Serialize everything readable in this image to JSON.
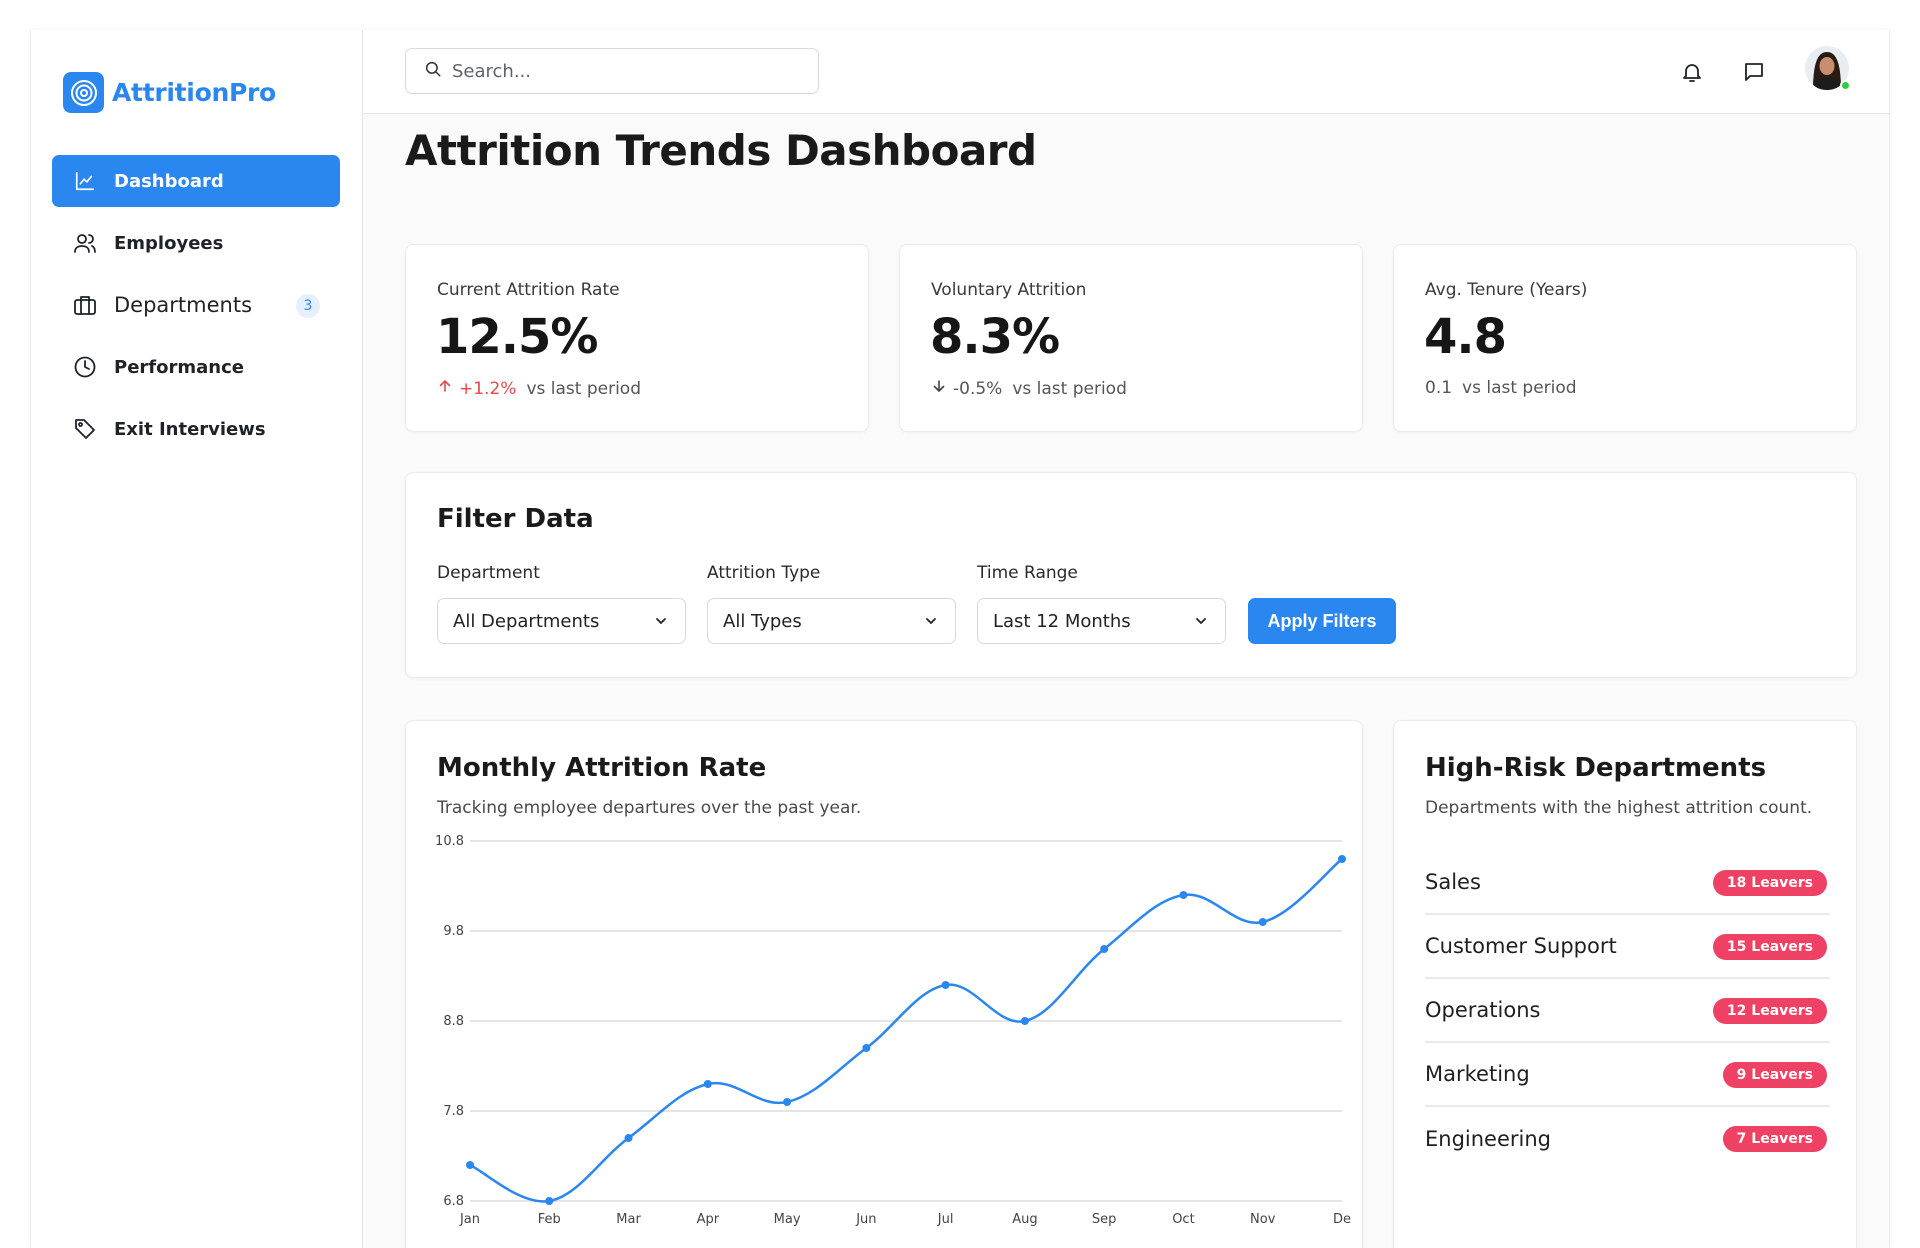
{
  "brand": {
    "name": "AttritionPro"
  },
  "sidebar": {
    "items": [
      {
        "label": "Dashboard",
        "icon": "line-chart-icon",
        "active": true
      },
      {
        "label": "Employees",
        "icon": "users-icon"
      },
      {
        "label": "Departments",
        "icon": "briefcase-icon",
        "badge": "3"
      },
      {
        "label": "Performance",
        "icon": "clock-icon"
      },
      {
        "label": "Exit Interviews",
        "icon": "tag-icon"
      }
    ]
  },
  "header": {
    "search_placeholder": "Search...",
    "icons": [
      "bell-icon",
      "message-icon"
    ]
  },
  "page": {
    "title": "Attrition Trends Dashboard"
  },
  "stats": [
    {
      "label": "Current Attrition Rate",
      "value": "12.5%",
      "change": "+1.2%",
      "direction": "up",
      "suffix": "vs last period"
    },
    {
      "label": "Voluntary Attrition",
      "value": "8.3%",
      "change": "-0.5%",
      "direction": "down",
      "suffix": "vs last period"
    },
    {
      "label": "Avg. Tenure (Years)",
      "value": "4.8",
      "change": "0.1",
      "direction": "none",
      "suffix": "vs last period"
    }
  ],
  "filters": {
    "title": "Filter Data",
    "department": {
      "label": "Department",
      "value": "All Departments"
    },
    "type": {
      "label": "Attrition Type",
      "value": "All Types"
    },
    "time": {
      "label": "Time Range",
      "value": "Last 12 Months"
    },
    "apply_label": "Apply Filters"
  },
  "monthly": {
    "title": "Monthly Attrition Rate",
    "subtitle": "Tracking employee departures over the past year."
  },
  "risk": {
    "title": "High-Risk Departments",
    "subtitle": "Departments with the highest attrition count.",
    "items": [
      {
        "name": "Sales",
        "badge": "18 Leavers"
      },
      {
        "name": "Customer Support",
        "badge": "15 Leavers"
      },
      {
        "name": "Operations",
        "badge": "12 Leavers"
      },
      {
        "name": "Marketing",
        "badge": "9 Leavers"
      },
      {
        "name": "Engineering",
        "badge": "7 Leavers"
      }
    ]
  },
  "colors": {
    "accent": "#2b87f0",
    "danger": "#ef4163",
    "line": "#2b87f0"
  },
  "chart_data": {
    "type": "line",
    "title": "Monthly Attrition Rate",
    "categories": [
      "Jan",
      "Feb",
      "Mar",
      "Apr",
      "May",
      "Jun",
      "Jul",
      "Aug",
      "Sep",
      "Oct",
      "Nov",
      "Dec"
    ],
    "x_tick_labels": [
      "Jan",
      "Feb",
      "Mar",
      "Apr",
      "May",
      "Jun",
      "Jul",
      "Aug",
      "Sep",
      "Oct",
      "Nov",
      "De"
    ],
    "values": [
      7.2,
      6.8,
      7.5,
      8.1,
      7.9,
      8.5,
      9.2,
      8.8,
      9.6,
      10.2,
      9.9,
      10.6
    ],
    "yticks": [
      6.8,
      7.8,
      8.8,
      9.8,
      10.8
    ],
    "ylim": [
      6.8,
      10.8
    ],
    "xlabel": "",
    "ylabel": "",
    "grid": true
  }
}
